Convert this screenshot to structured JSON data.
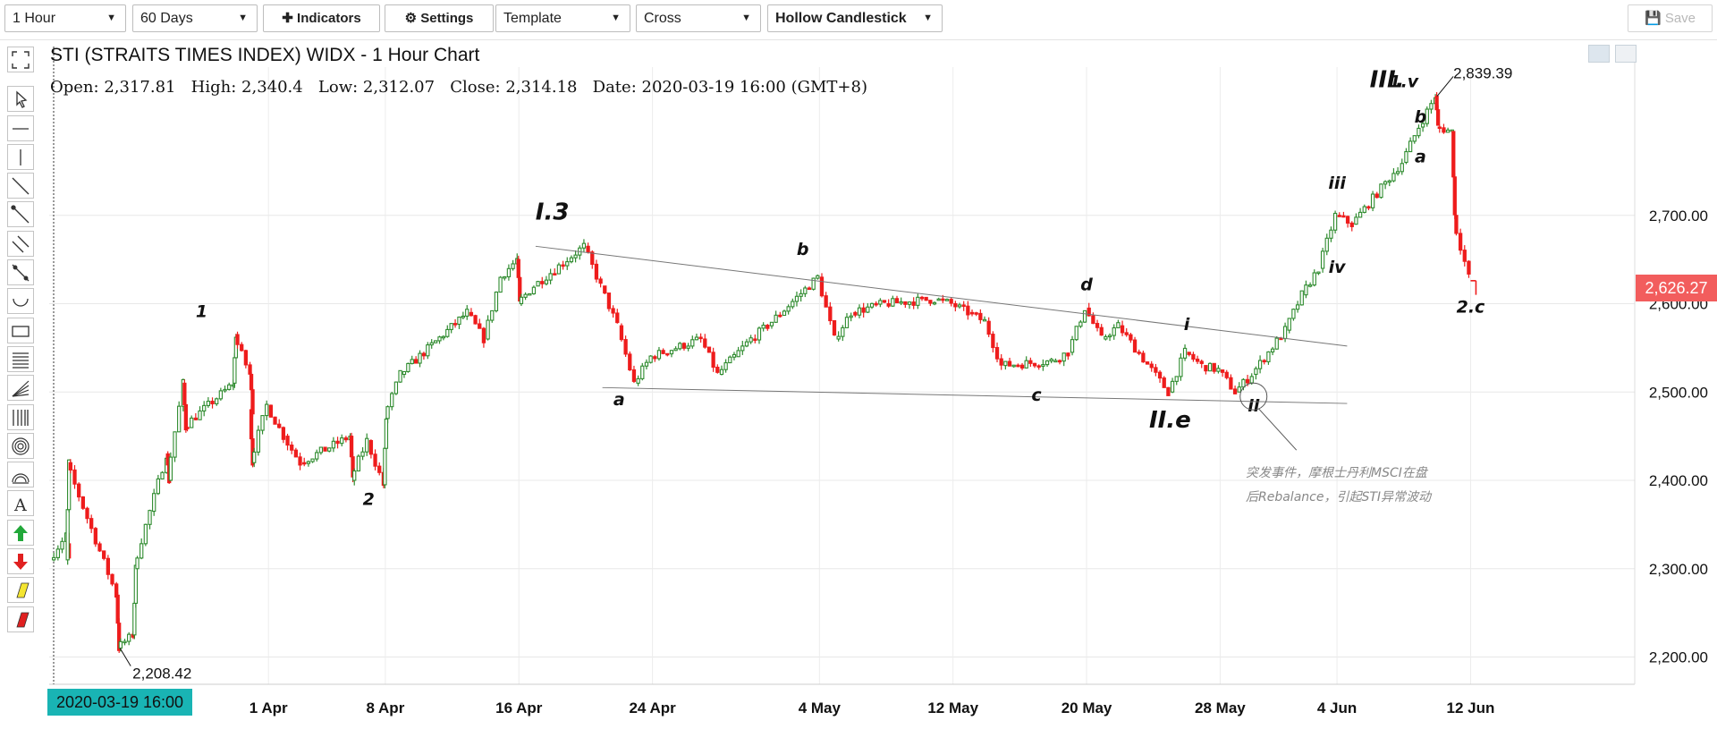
{
  "toolbar": {
    "interval": "1 Hour",
    "range": "60 Days",
    "indicators": "Indicators",
    "settings": "Settings",
    "template": "Template",
    "cursor": "Cross",
    "chart_style": "Hollow Candlestick",
    "save": "Save"
  },
  "chart": {
    "title": "STI (STRAITS TIMES INDEX) WIDX - 1 Hour Chart",
    "ohlc": {
      "open_label": "Open",
      "open": "2,317.81",
      "high_label": "High",
      "high": "2,340.4",
      "low_label": "Low",
      "low": "2,312.07",
      "close_label": "Close",
      "close": "2,314.18",
      "date_label": "Date",
      "date": "2020-03-19 16:00 (GMT+8)"
    },
    "current_price_tag": "2,626.27",
    "crosshair_date_tag": "2020-03-19 16:00",
    "low_marker": "2,208.42",
    "high_marker": "2,839.39",
    "note_line1": "突发事件，摩根士丹利MSCI在盘",
    "note_line2": "后Rebalance，引起STI异常波动",
    "colors": {
      "up": "#2e8b2e",
      "down": "#ee1c1c",
      "price_tag": "#f25d5d",
      "date_tag": "#19b4b4"
    }
  },
  "chart_data": {
    "type": "candlestick",
    "style": "hollow",
    "x_tick_labels": [
      "1 Apr",
      "8 Apr",
      "16 Apr",
      "24 Apr",
      "4 May",
      "12 May",
      "20 May",
      "28 May",
      "4 Jun",
      "12 Jun"
    ],
    "y_tick_labels": [
      "2,200.00",
      "2,300.00",
      "2,400.00",
      "2,500.00",
      "2,600.00",
      "2,700.00"
    ],
    "y_ticks": [
      2200,
      2300,
      2400,
      2500,
      2600,
      2700
    ],
    "ylim": [
      2170,
      2870
    ],
    "grid": true,
    "path": [
      [
        "2020-03-19",
        2310
      ],
      [
        "2020-03-20",
        2340
      ],
      [
        "2020-03-20",
        2310
      ],
      [
        "2020-03-20",
        2420
      ],
      [
        "2020-03-23",
        2270
      ],
      [
        "2020-03-23",
        2210
      ],
      [
        "2020-03-24",
        2225
      ],
      [
        "2020-03-24",
        2300
      ],
      [
        "2020-03-25",
        2365
      ],
      [
        "2020-03-26",
        2430
      ],
      [
        "2020-03-26",
        2400
      ],
      [
        "2020-03-27",
        2510
      ],
      [
        "2020-03-27",
        2460
      ],
      [
        "2020-03-30",
        2510
      ],
      [
        "2020-03-30",
        2565
      ],
      [
        "2020-03-31",
        2520
      ],
      [
        "2020-03-31",
        2480
      ],
      [
        "2020-03-31",
        2420
      ],
      [
        "2020-04-01",
        2485
      ],
      [
        "2020-04-02",
        2450
      ],
      [
        "2020-04-03",
        2420
      ],
      [
        "2020-04-06",
        2450
      ],
      [
        "2020-04-06",
        2400
      ],
      [
        "2020-04-07",
        2445
      ],
      [
        "2020-04-08",
        2395
      ],
      [
        "2020-04-08",
        2470
      ],
      [
        "2020-04-09",
        2520
      ],
      [
        "2020-04-13",
        2590
      ],
      [
        "2020-04-14",
        2560
      ],
      [
        "2020-04-15",
        2630
      ],
      [
        "2020-04-16",
        2650
      ],
      [
        "2020-04-16",
        2600
      ],
      [
        "2020-04-17",
        2620
      ],
      [
        "2020-04-20",
        2665
      ],
      [
        "2020-04-21",
        2620
      ],
      [
        "2020-04-22",
        2575
      ],
      [
        "2020-04-23",
        2510
      ],
      [
        "2020-04-24",
        2540
      ],
      [
        "2020-04-27",
        2560
      ],
      [
        "2020-04-28",
        2520
      ],
      [
        "2020-04-29",
        2540
      ],
      [
        "2020-04-30",
        2560
      ],
      [
        "2020-05-01",
        2575
      ],
      [
        "2020-05-04",
        2630
      ],
      [
        "2020-05-05",
        2560
      ],
      [
        "2020-05-06",
        2590
      ],
      [
        "2020-05-08",
        2600
      ],
      [
        "2020-05-11",
        2605
      ],
      [
        "2020-05-12",
        2600
      ],
      [
        "2020-05-13",
        2590
      ],
      [
        "2020-05-14",
        2580
      ],
      [
        "2020-05-15",
        2530
      ],
      [
        "2020-05-18",
        2535
      ],
      [
        "2020-05-19",
        2545
      ],
      [
        "2020-05-20",
        2595
      ],
      [
        "2020-05-21",
        2560
      ],
      [
        "2020-05-22",
        2575
      ],
      [
        "2020-05-25",
        2500
      ],
      [
        "2020-05-26",
        2545
      ],
      [
        "2020-05-27",
        2530
      ],
      [
        "2020-05-28",
        2525
      ],
      [
        "2020-05-29",
        2500
      ],
      [
        "2020-05-30",
        2520
      ],
      [
        "2020-06-01",
        2570
      ],
      [
        "2020-06-02",
        2610
      ],
      [
        "2020-06-03",
        2640
      ],
      [
        "2020-06-04",
        2700
      ],
      [
        "2020-06-05",
        2690
      ],
      [
        "2020-06-08",
        2760
      ],
      [
        "2020-06-09",
        2800
      ],
      [
        "2020-06-10",
        2835
      ],
      [
        "2020-06-10",
        2800
      ],
      [
        "2020-06-11",
        2795
      ],
      [
        "2020-06-11",
        2700
      ],
      [
        "2020-06-12",
        2630
      ]
    ],
    "trend_lines": [
      {
        "from": [
          "2020-04-17",
          2665
        ],
        "to": [
          "2020-06-03",
          2550
        ]
      },
      {
        "from": [
          "2020-04-21",
          2505
        ],
        "to": [
          "2020-06-03",
          2485
        ]
      }
    ],
    "annotations": [
      {
        "text": "1",
        "x": "2020-03-28",
        "y": 2585
      },
      {
        "text": "2",
        "x": "2020-04-07",
        "y": 2372
      },
      {
        "text": "I.3",
        "x": "2020-04-18",
        "y": 2695
      },
      {
        "text": "a",
        "x": "2020-04-22",
        "y": 2485
      },
      {
        "text": "b",
        "x": "2020-05-03",
        "y": 2655
      },
      {
        "text": "c",
        "x": "2020-05-17",
        "y": 2490
      },
      {
        "text": "d",
        "x": "2020-05-20",
        "y": 2615
      },
      {
        "text": "i",
        "x": "2020-05-26",
        "y": 2570
      },
      {
        "text": "II.e",
        "x": "2020-05-25",
        "y": 2460
      },
      {
        "text": "ii",
        "x": "2020-05-30",
        "y": 2478
      },
      {
        "text": "iii",
        "x": "2020-06-04",
        "y": 2730
      },
      {
        "text": "iv",
        "x": "2020-06-04",
        "y": 2635
      },
      {
        "text": "III.",
        "x": "2020-06-07",
        "y": 2845
      },
      {
        "text": "1.v",
        "x": "2020-06-08",
        "y": 2845
      },
      {
        "text": "b",
        "x": "2020-06-09",
        "y": 2805
      },
      {
        "text": "a",
        "x": "2020-06-09",
        "y": 2760
      },
      {
        "text": "2.c",
        "x": "2020-06-12",
        "y": 2590
      }
    ]
  }
}
